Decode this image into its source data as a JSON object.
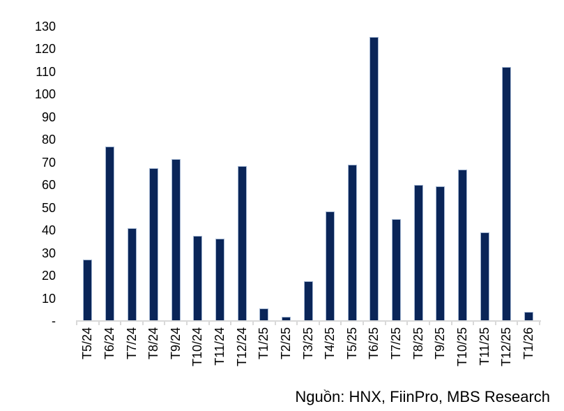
{
  "chart_data": {
    "type": "bar",
    "title": "",
    "categories": [
      "T5/24",
      "T6/24",
      "T7/24",
      "T8/24",
      "T9/24",
      "T10/24",
      "T11/24",
      "T12/24",
      "T1/25",
      "T2/25",
      "T3/25",
      "T4/25",
      "T5/25",
      "T6/25",
      "T7/25",
      "T8/25",
      "T9/25",
      "T10/25",
      "T11/25",
      "T12/25",
      "T1/26"
    ],
    "values": [
      27,
      77,
      41,
      67.5,
      71.5,
      37.5,
      36.5,
      68.5,
      5.5,
      2,
      17.5,
      48.5,
      69,
      125.5,
      45,
      60,
      59.5,
      67,
      39,
      112,
      4
    ],
    "ytick_labels": [
      "-",
      "10",
      "20",
      "30",
      "40",
      "50",
      "60",
      "70",
      "80",
      "90",
      "100",
      "110",
      "120",
      "130"
    ],
    "ytick_values": [
      0,
      10,
      20,
      30,
      40,
      50,
      60,
      70,
      80,
      90,
      100,
      110,
      120,
      130
    ],
    "ylim": [
      0,
      130
    ],
    "xlabel": "",
    "ylabel": "",
    "grid": false,
    "legend": "none",
    "source_note": "Nguồn: HNX, FiinPro, MBS Research",
    "colors": {
      "bar_fill": "#0A2558",
      "bar_border": "#A3B6D2",
      "axis_line": "#D9D9D9",
      "text": "#000000",
      "background": "#FFFFFF"
    }
  }
}
